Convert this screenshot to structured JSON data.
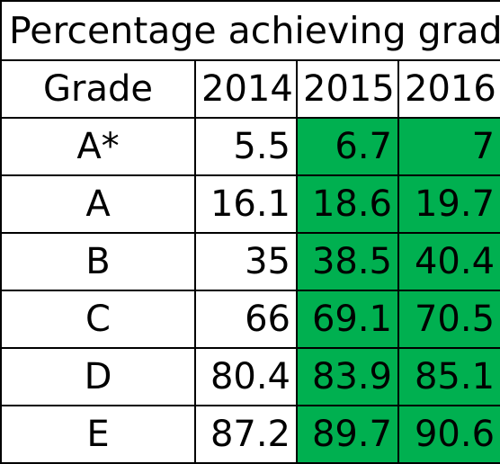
{
  "title": "Percentage achieving grade",
  "highlight_color": "#00b050",
  "highlighted_columns": [
    "2015",
    "2016"
  ],
  "chart_data": {
    "type": "table",
    "title": "Percentage achieving grade",
    "columns": [
      "Grade",
      "2014",
      "2015",
      "2016"
    ],
    "rows": [
      {
        "grade": "A*",
        "values": [
          "5.5",
          "6.7",
          "7"
        ]
      },
      {
        "grade": "A",
        "values": [
          "16.1",
          "18.6",
          "19.7"
        ]
      },
      {
        "grade": "B",
        "values": [
          "35",
          "38.5",
          "40.4"
        ]
      },
      {
        "grade": "C",
        "values": [
          "66",
          "69.1",
          "70.5"
        ]
      },
      {
        "grade": "D",
        "values": [
          "80.4",
          "83.9",
          "85.1"
        ]
      },
      {
        "grade": "E",
        "values": [
          "87.2",
          "89.7",
          "90.6"
        ]
      }
    ]
  }
}
